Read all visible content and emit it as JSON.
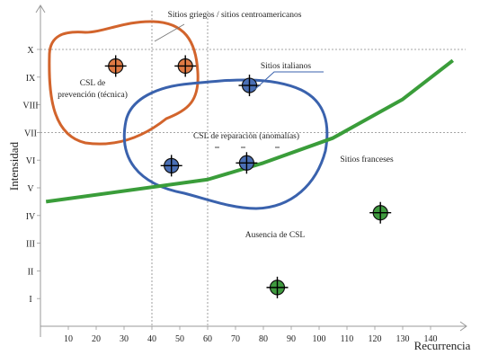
{
  "chart_data": {
    "type": "scatter",
    "xlabel": "Recurrencia",
    "ylabel": "Intensidad",
    "xlim": [
      0,
      150
    ],
    "ylim": [
      0,
      11
    ],
    "x_ticks": [
      10,
      20,
      30,
      40,
      50,
      60,
      70,
      80,
      90,
      100,
      110,
      120,
      130,
      140
    ],
    "y_ticks": [
      {
        "value": 1,
        "label": "I"
      },
      {
        "value": 2,
        "label": "II"
      },
      {
        "value": 3,
        "label": "III"
      },
      {
        "value": 4,
        "label": "IV"
      },
      {
        "value": 5,
        "label": "V"
      },
      {
        "value": 6,
        "label": "VI"
      },
      {
        "value": 7,
        "label": "VII"
      },
      {
        "value": 8,
        "label": "VIII"
      },
      {
        "value": 9,
        "label": "IX"
      },
      {
        "value": 10,
        "label": "X"
      }
    ],
    "reference_lines": {
      "vertical": [
        40,
        60
      ],
      "horizontal": [
        7,
        10
      ]
    },
    "series": [
      {
        "color": "#e07a44",
        "points": [
          {
            "x": 27,
            "y": 9.4
          },
          {
            "x": 52,
            "y": 9.4
          }
        ]
      },
      {
        "color": "#4a6fb5",
        "points": [
          {
            "x": 75,
            "y": 8.7
          },
          {
            "x": 47,
            "y": 5.8
          },
          {
            "x": 74,
            "y": 5.9
          }
        ]
      },
      {
        "color": "#3e9a3e",
        "points": [
          {
            "x": 122,
            "y": 4.1
          },
          {
            "x": 85,
            "y": 1.4
          }
        ]
      }
    ],
    "trend_line": {
      "color": "#3a9d3a",
      "points": [
        [
          2,
          4.5
        ],
        [
          60,
          5.3
        ],
        [
          80,
          5.9
        ],
        [
          105,
          6.8
        ],
        [
          130,
          8.2
        ],
        [
          148,
          9.6
        ]
      ]
    },
    "regions": [
      {
        "label": "CSL de prevención (técnica)",
        "color": "#d2642c"
      },
      {
        "label": "CSL de reparación (anomalías)",
        "color": "#3a62ad"
      }
    ],
    "annotations": [
      {
        "text": "Sitios griegos / sitios centroamericanos"
      },
      {
        "text": "Sitios italianos"
      },
      {
        "text": "Sitios franceses"
      },
      {
        "text": "Ausencia de CSL"
      }
    ]
  }
}
